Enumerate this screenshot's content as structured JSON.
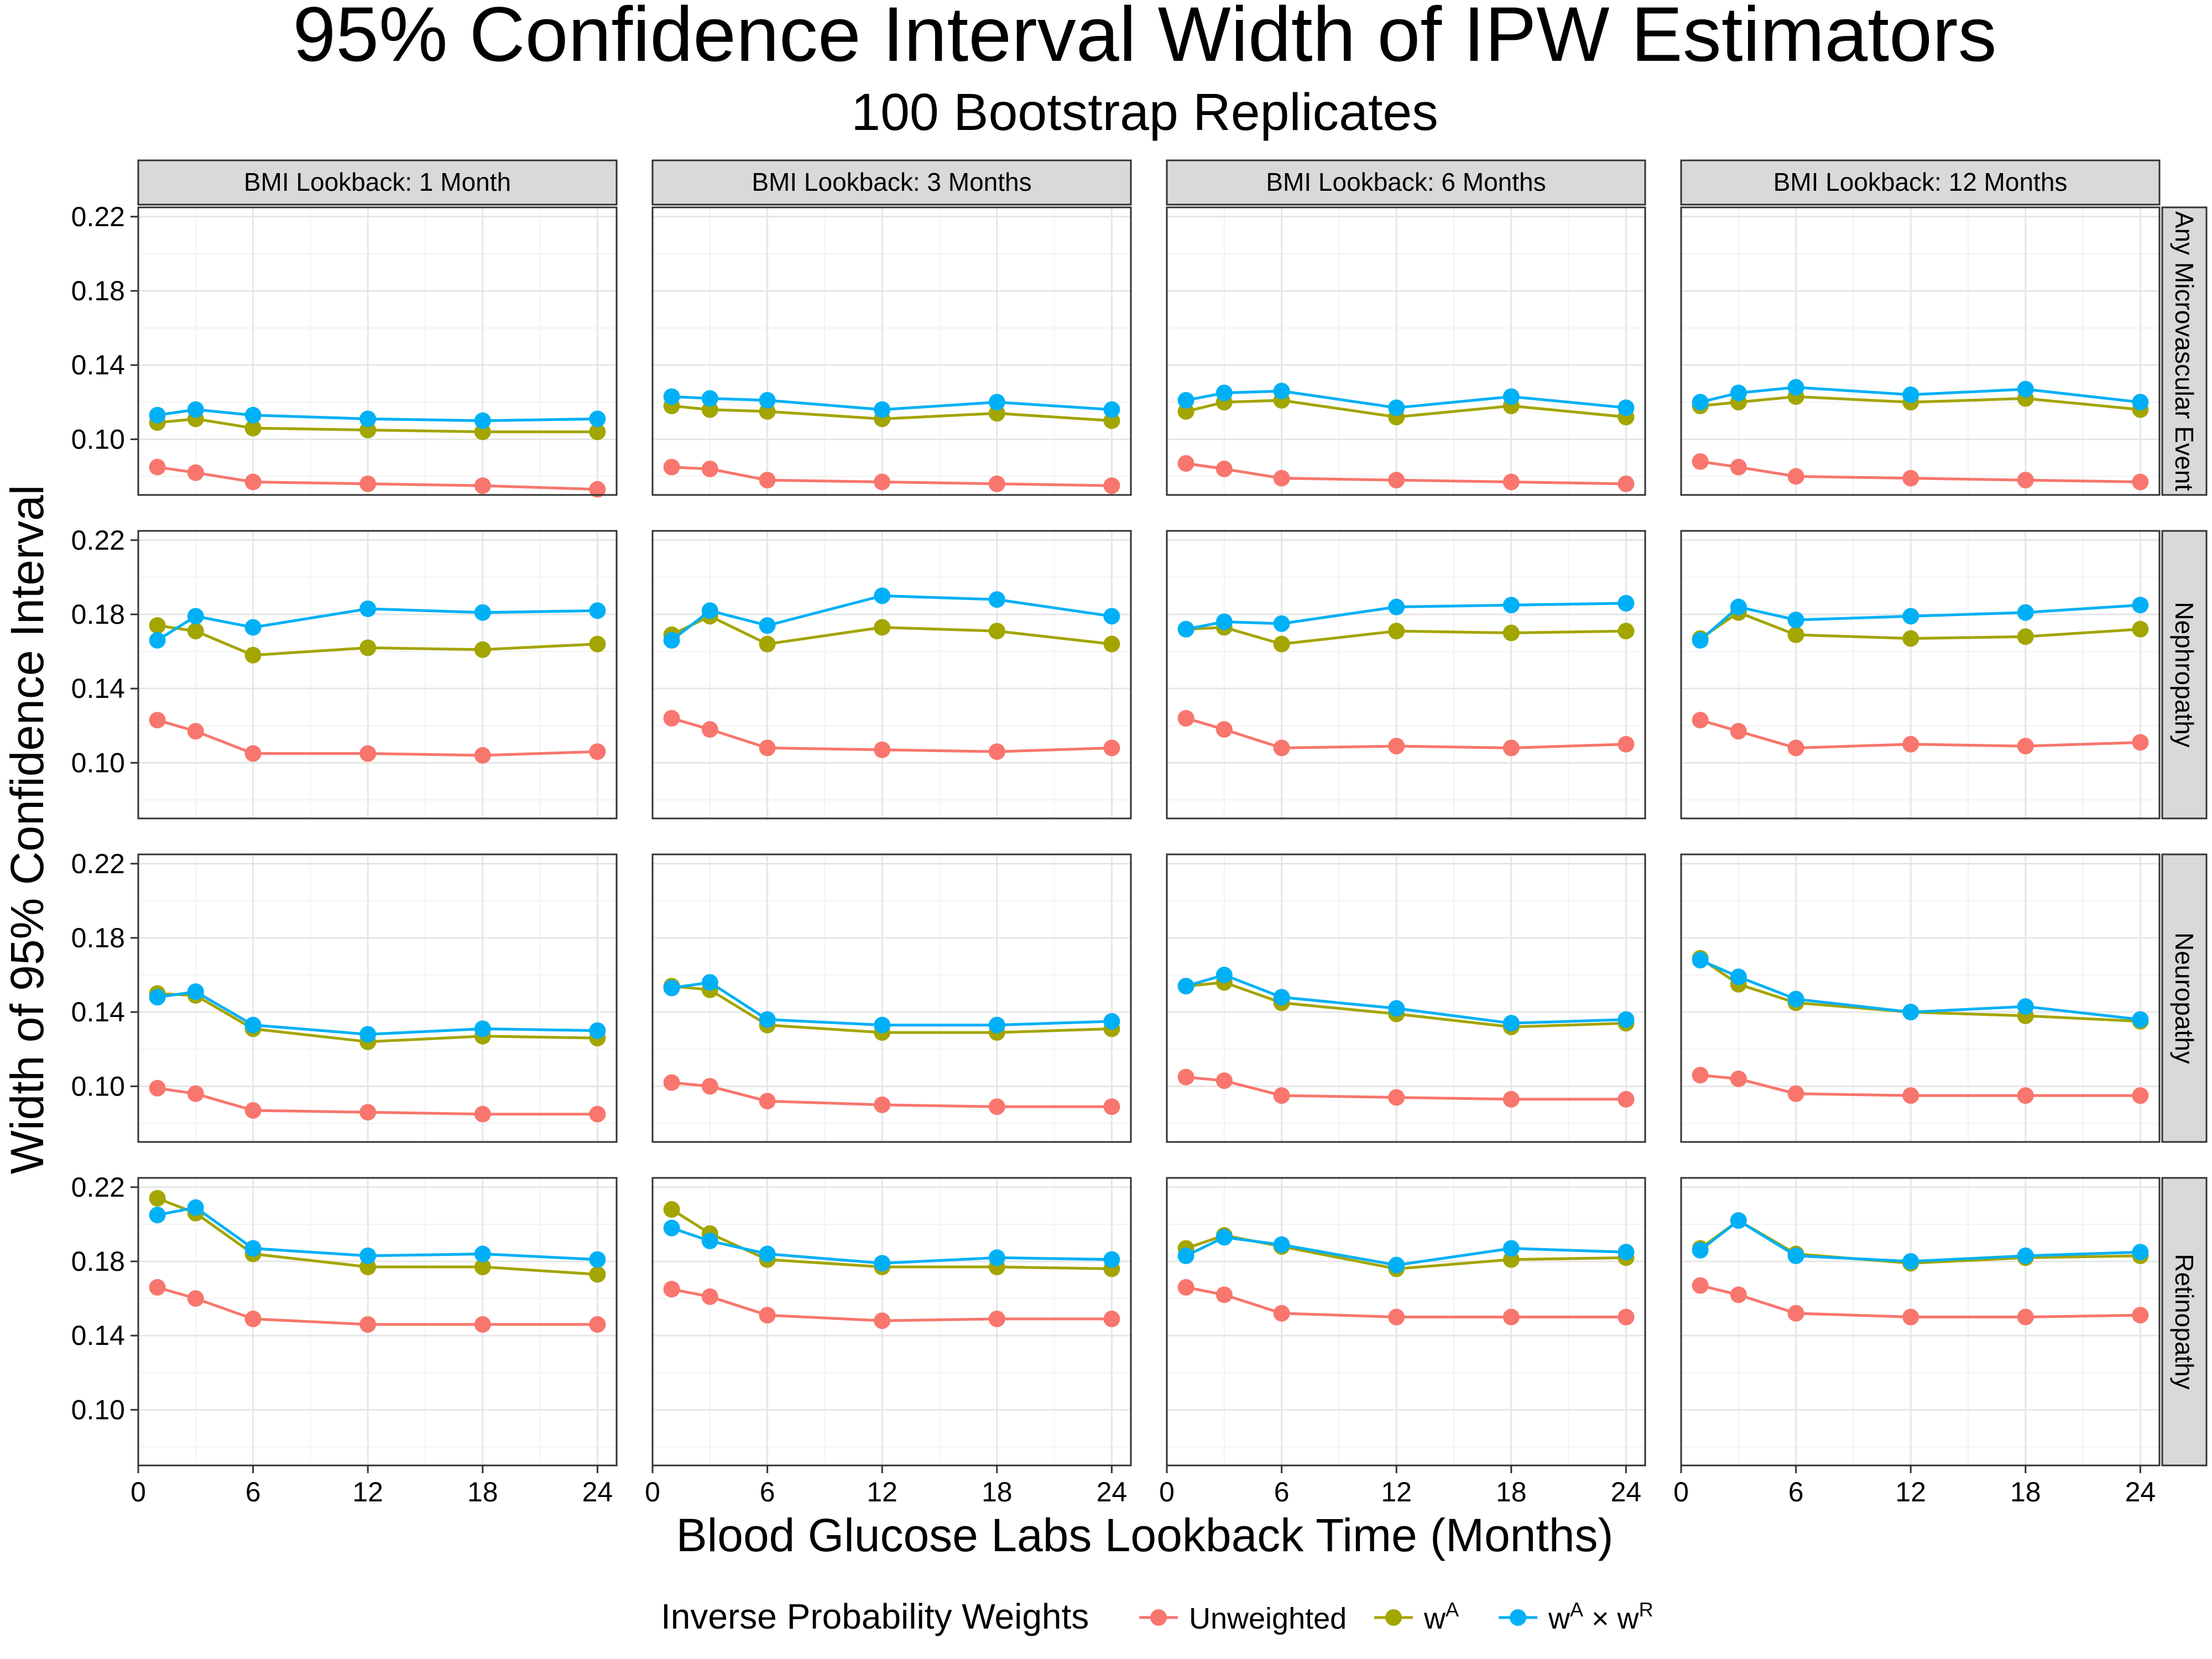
{
  "chart_data": {
    "type": "line",
    "title": "95% Confidence Interval Width of IPW Estimators",
    "subtitle": "100 Bootstrap Replicates",
    "xlabel": "Blood Glucose Labs Lookback Time (Months)",
    "ylabel": "Width of 95% Confidence Interval",
    "x": [
      1,
      3,
      6,
      12,
      18,
      24
    ],
    "x_ticks": [
      "0",
      "6",
      "12",
      "18",
      "24"
    ],
    "x_tick_values": [
      0,
      6,
      12,
      18,
      24
    ],
    "xlim": [
      0,
      25
    ],
    "y_ticks": [
      "0.10",
      "0.14",
      "0.18",
      "0.22"
    ],
    "y_tick_values": [
      0.1,
      0.14,
      0.18,
      0.22
    ],
    "ylim": [
      0.07,
      0.225
    ],
    "grid": true,
    "legend": {
      "position": "bottom",
      "title": "Inverse Probability Weights",
      "entries": [
        {
          "key": "unweighted",
          "label": "Unweighted",
          "color": "#F8766D"
        },
        {
          "key": "wa",
          "label": "w",
          "sup": "A",
          "color": "#A3A500"
        },
        {
          "key": "wawr",
          "label": "w",
          "sup": "A",
          "mid": " × w",
          "sup2": "R",
          "color": "#00B0F6"
        }
      ]
    },
    "columns": [
      "BMI Lookback: 1 Month",
      "BMI Lookback: 3 Months",
      "BMI Lookback: 6 Months",
      "BMI Lookback: 12 Months"
    ],
    "rows": [
      "Any Microvascular Event",
      "Nephropathy",
      "Neuropathy",
      "Retinopathy"
    ],
    "panels": [
      [
        {
          "unweighted": [
            0.085,
            0.082,
            0.077,
            0.076,
            0.075,
            0.073
          ],
          "wa": [
            0.109,
            0.111,
            0.106,
            0.105,
            0.104,
            0.104
          ],
          "wawr": [
            0.113,
            0.116,
            0.113,
            0.111,
            0.11,
            0.111
          ]
        },
        {
          "unweighted": [
            0.085,
            0.084,
            0.078,
            0.077,
            0.076,
            0.075
          ],
          "wa": [
            0.118,
            0.116,
            0.115,
            0.111,
            0.114,
            0.11
          ],
          "wawr": [
            0.123,
            0.122,
            0.121,
            0.116,
            0.12,
            0.116
          ]
        },
        {
          "unweighted": [
            0.087,
            0.084,
            0.079,
            0.078,
            0.077,
            0.076
          ],
          "wa": [
            0.115,
            0.12,
            0.121,
            0.112,
            0.118,
            0.112
          ],
          "wawr": [
            0.121,
            0.125,
            0.126,
            0.117,
            0.123,
            0.117
          ]
        },
        {
          "unweighted": [
            0.088,
            0.085,
            0.08,
            0.079,
            0.078,
            0.077
          ],
          "wa": [
            0.118,
            0.12,
            0.123,
            0.12,
            0.122,
            0.116
          ],
          "wawr": [
            0.12,
            0.125,
            0.128,
            0.124,
            0.127,
            0.12
          ]
        }
      ],
      [
        {
          "unweighted": [
            0.123,
            0.117,
            0.105,
            0.105,
            0.104,
            0.106
          ],
          "wa": [
            0.174,
            0.171,
            0.158,
            0.162,
            0.161,
            0.164
          ],
          "wawr": [
            0.166,
            0.179,
            0.173,
            0.183,
            0.181,
            0.182
          ]
        },
        {
          "unweighted": [
            0.124,
            0.118,
            0.108,
            0.107,
            0.106,
            0.108
          ],
          "wa": [
            0.169,
            0.179,
            0.164,
            0.173,
            0.171,
            0.164
          ],
          "wawr": [
            0.166,
            0.182,
            0.174,
            0.19,
            0.188,
            0.179
          ]
        },
        {
          "unweighted": [
            0.124,
            0.118,
            0.108,
            0.109,
            0.108,
            0.11
          ],
          "wa": [
            0.172,
            0.173,
            0.164,
            0.171,
            0.17,
            0.171
          ],
          "wawr": [
            0.172,
            0.176,
            0.175,
            0.184,
            0.185,
            0.186
          ]
        },
        {
          "unweighted": [
            0.123,
            0.117,
            0.108,
            0.11,
            0.109,
            0.111
          ],
          "wa": [
            0.167,
            0.181,
            0.169,
            0.167,
            0.168,
            0.172
          ],
          "wawr": [
            0.166,
            0.184,
            0.177,
            0.179,
            0.181,
            0.185
          ]
        }
      ],
      [
        {
          "unweighted": [
            0.099,
            0.096,
            0.087,
            0.086,
            0.085,
            0.085
          ],
          "wa": [
            0.15,
            0.149,
            0.131,
            0.124,
            0.127,
            0.126
          ],
          "wawr": [
            0.148,
            0.151,
            0.133,
            0.128,
            0.131,
            0.13
          ]
        },
        {
          "unweighted": [
            0.102,
            0.1,
            0.092,
            0.09,
            0.089,
            0.089
          ],
          "wa": [
            0.154,
            0.152,
            0.133,
            0.129,
            0.129,
            0.131
          ],
          "wawr": [
            0.153,
            0.156,
            0.136,
            0.133,
            0.133,
            0.135
          ]
        },
        {
          "unweighted": [
            0.105,
            0.103,
            0.095,
            0.094,
            0.093,
            0.093
          ],
          "wa": [
            0.154,
            0.156,
            0.145,
            0.139,
            0.132,
            0.134
          ],
          "wawr": [
            0.154,
            0.16,
            0.148,
            0.142,
            0.134,
            0.136
          ]
        },
        {
          "unweighted": [
            0.106,
            0.104,
            0.096,
            0.095,
            0.095,
            0.095
          ],
          "wa": [
            0.169,
            0.155,
            0.145,
            0.14,
            0.138,
            0.135
          ],
          "wawr": [
            0.168,
            0.159,
            0.147,
            0.14,
            0.143,
            0.136
          ]
        }
      ],
      [
        {
          "unweighted": [
            0.166,
            0.16,
            0.149,
            0.146,
            0.146,
            0.146
          ],
          "wa": [
            0.214,
            0.206,
            0.184,
            0.177,
            0.177,
            0.173
          ],
          "wawr": [
            0.205,
            0.209,
            0.187,
            0.183,
            0.184,
            0.181
          ]
        },
        {
          "unweighted": [
            0.165,
            0.161,
            0.151,
            0.148,
            0.149,
            0.149
          ],
          "wa": [
            0.208,
            0.195,
            0.181,
            0.177,
            0.177,
            0.176
          ],
          "wawr": [
            0.198,
            0.191,
            0.184,
            0.179,
            0.182,
            0.181
          ]
        },
        {
          "unweighted": [
            0.166,
            0.162,
            0.152,
            0.15,
            0.15,
            0.15
          ],
          "wa": [
            0.187,
            0.194,
            0.188,
            0.176,
            0.181,
            0.182
          ],
          "wawr": [
            0.183,
            0.193,
            0.189,
            0.178,
            0.187,
            0.185
          ]
        },
        {
          "unweighted": [
            0.167,
            0.162,
            0.152,
            0.15,
            0.15,
            0.151
          ],
          "wa": [
            0.187,
            0.202,
            0.184,
            0.179,
            0.182,
            0.183
          ],
          "wawr": [
            0.186,
            0.202,
            0.183,
            0.18,
            0.183,
            0.185
          ]
        }
      ]
    ]
  }
}
